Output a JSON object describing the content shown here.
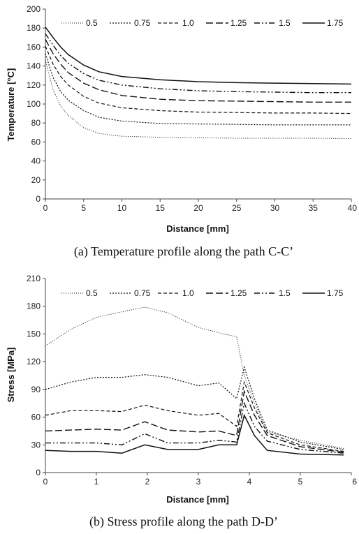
{
  "chart_data": [
    {
      "type": "line",
      "caption": "(a) Temperature profile along the path C-C’",
      "xlabel": "Distance [mm]",
      "ylabel": "Temperature [°C]",
      "xlim": [
        0,
        40
      ],
      "ylim": [
        0,
        200
      ],
      "x_ticks": [
        "0",
        "5",
        "10",
        "15",
        "20",
        "25",
        "30",
        "35",
        "40"
      ],
      "y_ticks": [
        "0",
        "20",
        "40",
        "60",
        "80",
        "100",
        "120",
        "140",
        "160",
        "180",
        "200"
      ],
      "grid": false,
      "legend_position": "top",
      "series": [
        {
          "name": "0.5",
          "dash": "1,2",
          "width": 1,
          "x": [
            0,
            1,
            2,
            3,
            5,
            7,
            10,
            15,
            20,
            25,
            30,
            35,
            40
          ],
          "y": [
            146,
            115,
            98,
            88,
            75,
            69,
            66,
            65,
            64.5,
            64,
            64,
            64,
            63.5
          ]
        },
        {
          "name": "0.75",
          "dash": "2,2",
          "width": 1.2,
          "x": [
            0,
            1,
            2,
            3,
            5,
            7,
            10,
            15,
            20,
            25,
            30,
            35,
            40
          ],
          "y": [
            153,
            128,
            113,
            104,
            93,
            86,
            82,
            79.5,
            79,
            78.5,
            78,
            78,
            78
          ]
        },
        {
          "name": "1.0",
          "dash": "5,3",
          "width": 1.2,
          "x": [
            0,
            1,
            2,
            3,
            5,
            7,
            10,
            15,
            20,
            25,
            30,
            35,
            40
          ],
          "y": [
            161,
            142,
            129,
            120,
            108,
            101,
            96,
            93,
            91.5,
            91,
            90.5,
            90.5,
            90
          ]
        },
        {
          "name": "1.25",
          "dash": "10,4",
          "width": 1.4,
          "x": [
            0,
            1,
            2,
            3,
            5,
            7,
            10,
            15,
            20,
            25,
            30,
            35,
            40
          ],
          "y": [
            168,
            153,
            142,
            133,
            122,
            115,
            109,
            105,
            103.5,
            103,
            102.5,
            102,
            102
          ]
        },
        {
          "name": "1.5",
          "dash": "8,3,2,3,2,3",
          "width": 1.4,
          "x": [
            0,
            1,
            2,
            3,
            5,
            7,
            10,
            15,
            20,
            25,
            30,
            35,
            40
          ],
          "y": [
            174,
            162,
            151,
            143,
            132,
            125,
            120,
            116,
            114,
            113,
            112.5,
            112,
            112
          ]
        },
        {
          "name": "1.75",
          "dash": "",
          "width": 1.5,
          "x": [
            0,
            1,
            2,
            3,
            5,
            7,
            10,
            15,
            20,
            25,
            30,
            35,
            40
          ],
          "y": [
            181,
            170,
            160,
            152,
            141,
            134,
            129,
            125.5,
            123.5,
            122.5,
            122,
            121.5,
            121
          ]
        }
      ]
    },
    {
      "type": "line",
      "caption": "(b) Stress profile along the path D-D’",
      "xlabel": "Distance [mm]",
      "ylabel": "Stress [MPa]",
      "xlim": [
        0,
        6
      ],
      "ylim": [
        0,
        210
      ],
      "x_ticks": [
        "0",
        "1",
        "2",
        "3",
        "4",
        "5",
        "6"
      ],
      "y_ticks": [
        "0",
        "30",
        "60",
        "90",
        "120",
        "150",
        "180",
        "210"
      ],
      "grid": false,
      "legend_position": "top",
      "series": [
        {
          "name": "0.5",
          "dash": "1,2",
          "width": 1,
          "x": [
            0,
            0.5,
            1,
            1.5,
            1.95,
            2.4,
            3,
            3.5,
            3.75,
            3.9,
            4.1,
            4.35,
            5,
            5.85
          ],
          "y": [
            137,
            155,
            168,
            174,
            179,
            173,
            157,
            150,
            147,
            105,
            75,
            44,
            35,
            26
          ]
        },
        {
          "name": "0.75",
          "dash": "2,2",
          "width": 1.2,
          "x": [
            0,
            0.5,
            1,
            1.5,
            1.95,
            2.4,
            3,
            3.4,
            3.75,
            3.9,
            4.1,
            4.35,
            5,
            5.85
          ],
          "y": [
            90,
            98,
            103,
            103,
            106,
            103,
            94,
            97,
            80,
            114,
            80,
            46,
            33,
            25
          ]
        },
        {
          "name": "1.0",
          "dash": "5,3",
          "width": 1.2,
          "x": [
            0,
            0.5,
            1,
            1.5,
            1.95,
            2.4,
            3,
            3.4,
            3.75,
            3.9,
            4.1,
            4.35,
            5,
            5.85
          ],
          "y": [
            62,
            67,
            67,
            66,
            73,
            67,
            62,
            64,
            50,
            98,
            70,
            43,
            30,
            23
          ]
        },
        {
          "name": "1.25",
          "dash": "10,4",
          "width": 1.4,
          "x": [
            0,
            0.5,
            1,
            1.5,
            1.95,
            2.4,
            3,
            3.4,
            3.75,
            3.9,
            4.1,
            4.35,
            5,
            5.85
          ],
          "y": [
            45,
            46,
            47,
            46,
            55,
            46,
            44,
            45,
            40,
            88,
            62,
            40,
            28,
            22
          ]
        },
        {
          "name": "1.5",
          "dash": "8,3,2,3,2,3",
          "width": 1.4,
          "x": [
            0,
            0.5,
            1,
            1.5,
            1.95,
            2.4,
            3,
            3.4,
            3.75,
            3.9,
            4.1,
            4.35,
            5,
            5.85
          ],
          "y": [
            32,
            32,
            32,
            30,
            42,
            32,
            32,
            35,
            33,
            75,
            50,
            34,
            25,
            21
          ]
        },
        {
          "name": "1.75",
          "dash": "",
          "width": 1.5,
          "x": [
            0,
            0.5,
            1,
            1.5,
            1.95,
            2.4,
            3,
            3.4,
            3.75,
            3.9,
            4.1,
            4.35,
            5,
            5.85
          ],
          "y": [
            24,
            23,
            23,
            21,
            30,
            25,
            25,
            30,
            30,
            62,
            40,
            24,
            20,
            19
          ]
        }
      ]
    }
  ]
}
